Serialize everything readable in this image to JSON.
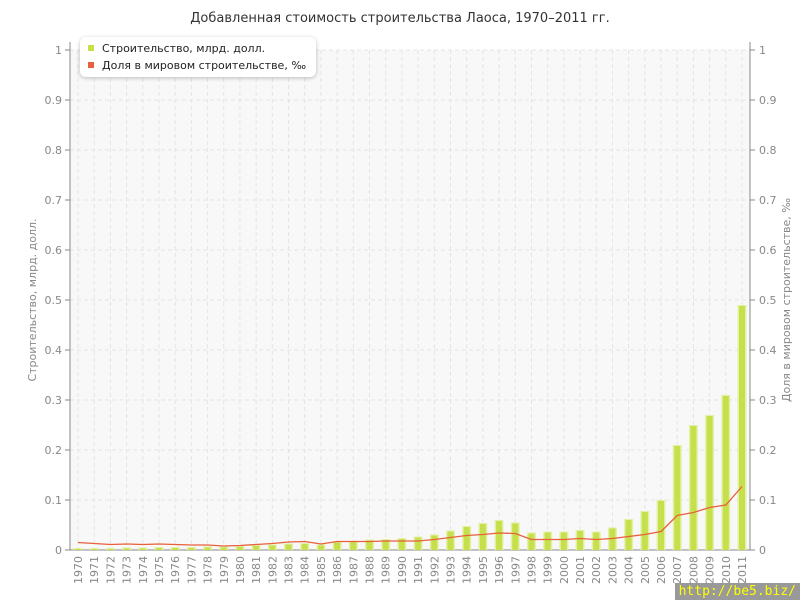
{
  "chart_data": {
    "type": "bar",
    "title": "Добавленная стоимость строительства Лаоса, 1970–2011 гг.",
    "ylabel": "Строительство, млрд. долл.",
    "y2label": "Доля в мировом строительстве, ‰",
    "ylim": [
      0,
      1
    ],
    "y2lim": [
      0,
      1
    ],
    "yticks": [
      "0",
      "0.1",
      "0.2",
      "0.3",
      "0.4",
      "0.5",
      "0.6",
      "0.7",
      "0.8",
      "0.9",
      "1"
    ],
    "grid": true,
    "legend_position": "top-left",
    "categories": [
      "1970",
      "1971",
      "1972",
      "1973",
      "1974",
      "1975",
      "1976",
      "1977",
      "1978",
      "1979",
      "1980",
      "1981",
      "1982",
      "1983",
      "1984",
      "1985",
      "1986",
      "1987",
      "1988",
      "1989",
      "1990",
      "1991",
      "1992",
      "1993",
      "1994",
      "1995",
      "1996",
      "1997",
      "1998",
      "1999",
      "2000",
      "2001",
      "2002",
      "2003",
      "2004",
      "2005",
      "2006",
      "2007",
      "2008",
      "2009",
      "2010",
      "2011"
    ],
    "series": [
      {
        "name": "Строительство, млрд. долл.",
        "type": "bar",
        "color": "#c5e04a",
        "values": [
          0.004,
          0.004,
          0.004,
          0.005,
          0.005,
          0.006,
          0.006,
          0.006,
          0.007,
          0.007,
          0.008,
          0.01,
          0.011,
          0.013,
          0.014,
          0.011,
          0.017,
          0.018,
          0.021,
          0.022,
          0.024,
          0.027,
          0.031,
          0.039,
          0.048,
          0.054,
          0.06,
          0.055,
          0.035,
          0.037,
          0.037,
          0.04,
          0.037,
          0.045,
          0.062,
          0.078,
          0.1,
          0.21,
          0.25,
          0.27,
          0.31,
          0.49
        ]
      },
      {
        "name": "Доля в мировом строительстве, ‰",
        "type": "line",
        "color": "#e8603c",
        "values": [
          0.015,
          0.013,
          0.011,
          0.012,
          0.011,
          0.012,
          0.011,
          0.01,
          0.01,
          0.008,
          0.009,
          0.011,
          0.013,
          0.016,
          0.017,
          0.012,
          0.017,
          0.017,
          0.017,
          0.018,
          0.018,
          0.018,
          0.021,
          0.025,
          0.029,
          0.031,
          0.034,
          0.033,
          0.021,
          0.021,
          0.021,
          0.023,
          0.021,
          0.023,
          0.027,
          0.031,
          0.037,
          0.069,
          0.075,
          0.085,
          0.09,
          0.127
        ]
      }
    ]
  },
  "watermark": "http://be5.biz/"
}
